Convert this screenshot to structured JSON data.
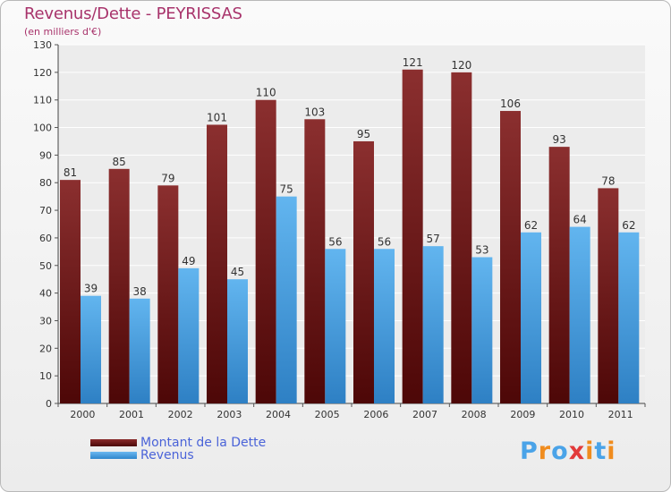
{
  "title": "Revenus/Dette - PEYRISSAS",
  "subtitle": "(en milliers d'€)",
  "logo": [
    "P",
    "r",
    "o",
    "x",
    "i",
    "t",
    "i"
  ],
  "colors": {
    "title": "#a8336b",
    "dette": "#7a1a1a",
    "revenus": "#4aa3e8",
    "legend_text": "#4a63d8",
    "logo": [
      "#4aa3e8",
      "#f08c1e",
      "#4aa3e8",
      "#e23a3a",
      "#f08c1e",
      "#4aa3e8",
      "#f08c1e"
    ]
  },
  "chart_data": {
    "type": "bar",
    "title": "Revenus/Dette - PEYRISSAS",
    "ylabel": "(en milliers d'€)",
    "xlabel": "",
    "categories": [
      "2000",
      "2001",
      "2002",
      "2003",
      "2004",
      "2005",
      "2006",
      "2007",
      "2008",
      "2009",
      "2010",
      "2011"
    ],
    "series": [
      {
        "name": "Montant de la Dette",
        "values": [
          81,
          85,
          79,
          101,
          110,
          103,
          95,
          121,
          120,
          106,
          93,
          78
        ]
      },
      {
        "name": "Revenus",
        "values": [
          39,
          38,
          49,
          45,
          75,
          56,
          56,
          57,
          53,
          62,
          64,
          62
        ]
      }
    ],
    "ylim": [
      0,
      130
    ],
    "yticks": [
      0,
      10,
      20,
      30,
      40,
      50,
      60,
      70,
      80,
      90,
      100,
      110,
      120,
      130
    ],
    "grid": true,
    "legend": "bottom-left"
  }
}
